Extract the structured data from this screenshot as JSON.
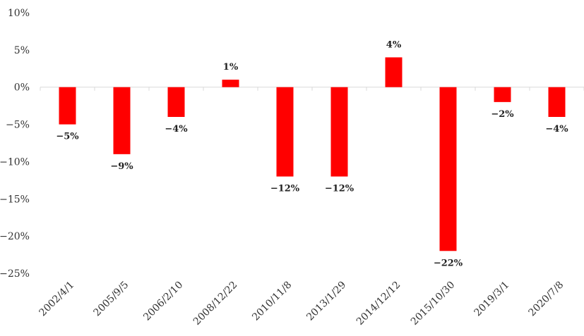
{
  "chart_data": {
    "type": "bar",
    "title": "",
    "xlabel": "",
    "ylabel": "",
    "categories": [
      "2002/4/1",
      "2005/9/5",
      "2006/2/10",
      "2008/12/22",
      "2010/11/8",
      "2013/1/29",
      "2014/12/12",
      "2015/10/30",
      "2019/3/1",
      "2020/7/8"
    ],
    "values": [
      -5,
      -9,
      -4,
      1,
      -12,
      -12,
      4,
      -22,
      -2,
      -4
    ],
    "value_labels": [
      "-5%",
      "-9%",
      "-4%",
      "1%",
      "-12%",
      "-12%",
      "4%",
      "-22%",
      "-2%",
      "-4%"
    ],
    "ylim": [
      -25,
      10
    ],
    "yticks": [
      10,
      5,
      0,
      -5,
      -10,
      -15,
      -20,
      -25
    ],
    "ytick_labels": [
      "10%",
      "5%",
      "0%",
      "-5%",
      "-10%",
      "-15%",
      "-20%",
      "-25%"
    ],
    "bar_color": "#ff0000",
    "axis_color": "#d9d9d9",
    "grid": false,
    "legend": "none"
  }
}
